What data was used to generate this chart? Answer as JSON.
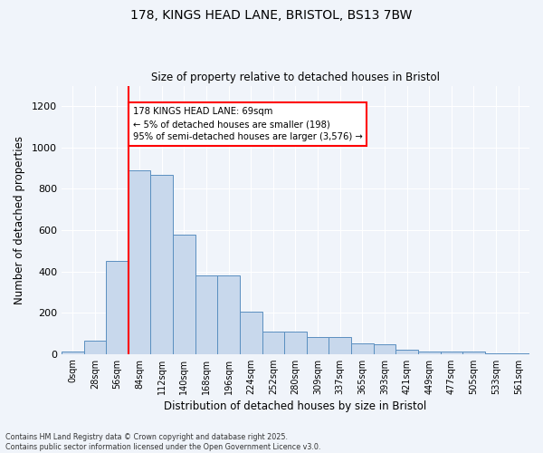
{
  "title": "178, KINGS HEAD LANE, BRISTOL, BS13 7BW",
  "subtitle": "Size of property relative to detached houses in Bristol",
  "xlabel": "Distribution of detached houses by size in Bristol",
  "ylabel": "Number of detached properties",
  "bar_values": [
    10,
    65,
    450,
    890,
    870,
    580,
    380,
    380,
    205,
    110,
    110,
    80,
    80,
    52,
    48,
    22,
    14,
    14,
    14,
    5,
    5
  ],
  "bin_labels": [
    "0sqm",
    "28sqm",
    "56sqm",
    "84sqm",
    "112sqm",
    "140sqm",
    "168sqm",
    "196sqm",
    "224sqm",
    "252sqm",
    "280sqm",
    "309sqm",
    "337sqm",
    "365sqm",
    "393sqm",
    "421sqm",
    "449sqm",
    "477sqm",
    "505sqm",
    "533sqm",
    "561sqm"
  ],
  "bar_color": "#c8d8ec",
  "bar_edge_color": "#5a8fc0",
  "vline_x": 2.5,
  "vline_color": "red",
  "annotation_text": "178 KINGS HEAD LANE: 69sqm\n← 5% of detached houses are smaller (198)\n95% of semi-detached houses are larger (3,576) →",
  "annotation_box_color": "white",
  "annotation_box_edge": "red",
  "ylim": [
    0,
    1300
  ],
  "yticks": [
    0,
    200,
    400,
    600,
    800,
    1000,
    1200
  ],
  "footer_line1": "Contains HM Land Registry data © Crown copyright and database right 2025.",
  "footer_line2": "Contains public sector information licensed under the Open Government Licence v3.0.",
  "bg_color": "#f0f4fa",
  "grid_color": "white"
}
